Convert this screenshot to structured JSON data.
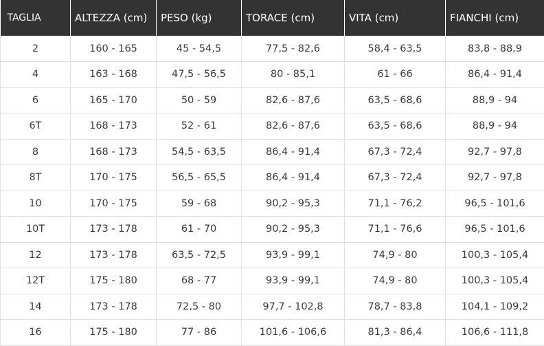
{
  "table": {
    "headers": [
      "TAGLIA",
      "ALTEZZA (cm)",
      "PESO (kg)",
      "TORACE (cm)",
      "VITA (cm)",
      "FIANCHI (cm)"
    ],
    "rows": [
      [
        "2",
        "160 - 165",
        "45 - 54,5",
        "77,5 - 82,6",
        "58,4 - 63,5",
        "83,8 - 88,9"
      ],
      [
        "4",
        "163 - 168",
        "47,5 - 56,5",
        "80 - 85,1",
        "61 - 66",
        "86,4 - 91,4"
      ],
      [
        "6",
        "165 - 170",
        "50 - 59",
        "82,6 - 87,6",
        "63,5 - 68,6",
        "88,9 - 94"
      ],
      [
        "6T",
        "168 - 173",
        "52 - 61",
        "82,6 - 87,6",
        "63,5 - 68,6",
        "88,9 - 94"
      ],
      [
        "8",
        "168 - 173",
        "54,5 - 63,5",
        "86,4 - 91,4",
        "67,3 - 72,4",
        "92,7 - 97,8"
      ],
      [
        "8T",
        "170 - 175",
        "56,5 - 65,5",
        "86,4 - 91,4",
        "67,3 - 72,4",
        "92,7 - 97,8"
      ],
      [
        "10",
        "170 - 175",
        "59 - 68",
        "90,2 - 95,3",
        "71,1 - 76,2",
        "96,5 - 101,6"
      ],
      [
        "10T",
        "173 - 178",
        "61 - 70",
        "90,2 - 95,3",
        "71,1 - 76,6",
        "96,5 - 101,6"
      ],
      [
        "12",
        "173 - 178",
        "63,5 - 72,5",
        "93,9 - 99,1",
        "74,9 - 80",
        "100,3 - 105,4"
      ],
      [
        "12T",
        "175 - 180",
        "68 - 77",
        "93,9 - 99,1",
        "74,9 - 80",
        "100,3 - 105,4"
      ],
      [
        "14",
        "173 - 178",
        "72,5 - 80",
        "97,7 - 102,8",
        "78,7 - 83,8",
        "104,1 - 109,2"
      ],
      [
        "16",
        "175 - 180",
        "77 - 86",
        "101,6 - 106,6",
        "81,3 - 86,4",
        "106,6 - 111,8"
      ]
    ]
  },
  "colors": {
    "header_background": "#333333",
    "header_text": "#ffffff",
    "cell_text": "#3a3a3a",
    "grid_line": "#e2e2e2"
  }
}
